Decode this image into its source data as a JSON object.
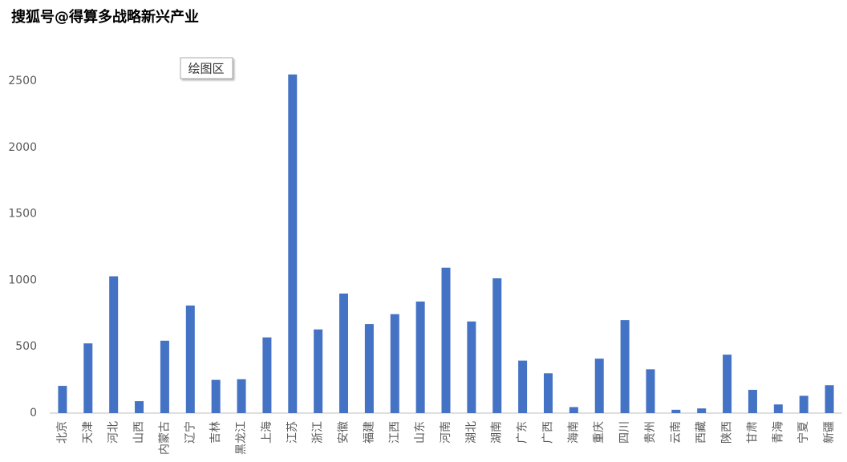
{
  "chart_data": {
    "type": "bar",
    "title": "搜狐号@得算多战略新兴产业",
    "annotation": "绘图区",
    "categories": [
      "北京",
      "天津",
      "河北",
      "山西",
      "内蒙古",
      "辽宁",
      "吉林",
      "黑龙江",
      "上海",
      "江苏",
      "浙江",
      "安徽",
      "福建",
      "江西",
      "山东",
      "河南",
      "湖北",
      "湖南",
      "广东",
      "广西",
      "海南",
      "重庆",
      "四川",
      "贵州",
      "云南",
      "西藏",
      "陕西",
      "甘肃",
      "青海",
      "宁夏",
      "新疆"
    ],
    "values": [
      205,
      525,
      1030,
      90,
      545,
      810,
      250,
      255,
      570,
      2550,
      630,
      900,
      670,
      745,
      840,
      1095,
      690,
      1015,
      395,
      300,
      45,
      410,
      700,
      330,
      25,
      35,
      440,
      175,
      65,
      130,
      210
    ],
    "color": "#4472c4",
    "ylim": [
      0,
      2700
    ],
    "yticks": [
      0,
      500,
      1000,
      1500,
      2000,
      2500
    ],
    "grid": false
  }
}
